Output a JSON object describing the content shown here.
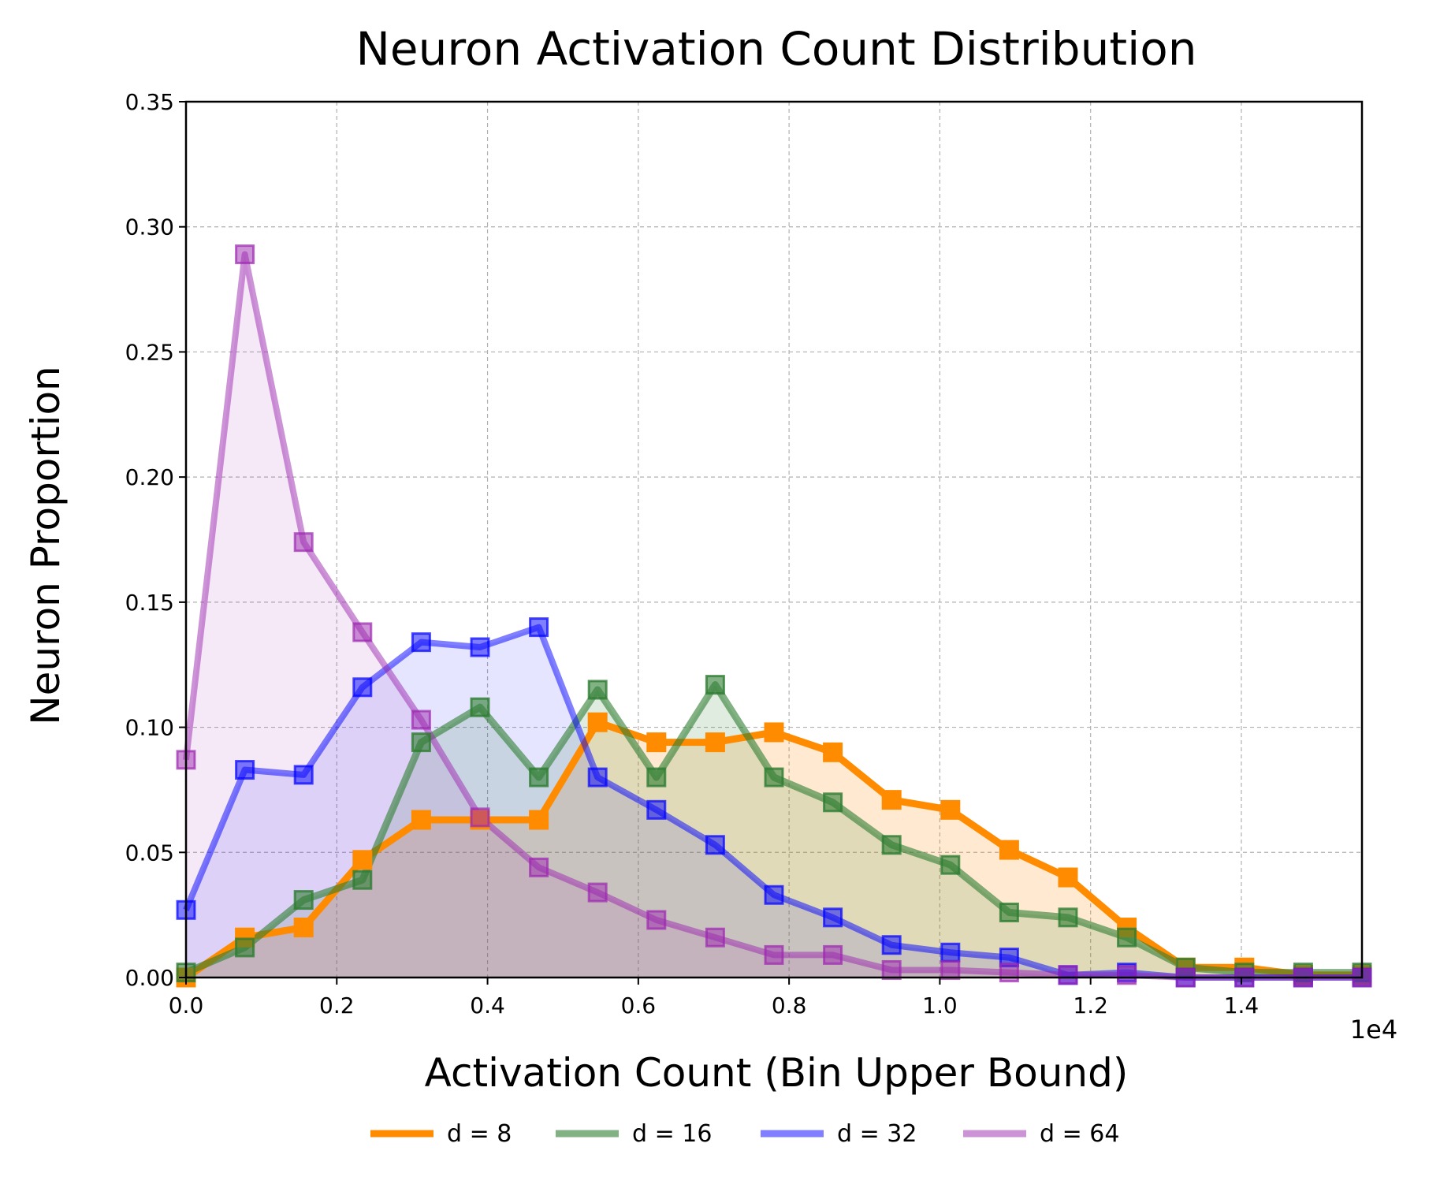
{
  "chart_data": {
    "type": "line",
    "title": "Neuron Activation Count Distribution",
    "xlabel": "Activation Count (Bin Upper Bound)",
    "ylabel": "Neuron Proportion",
    "x_scale_label": "1e4",
    "xlim": [
      0,
      15600
    ],
    "ylim": [
      0,
      0.35
    ],
    "x_ticks": [
      0,
      2000,
      4000,
      6000,
      8000,
      10000,
      12000,
      14000
    ],
    "x_tick_labels": [
      "0.0",
      "0.2",
      "0.4",
      "0.6",
      "0.8",
      "1.0",
      "1.2",
      "1.4"
    ],
    "y_ticks": [
      0,
      0.05,
      0.1,
      0.15,
      0.2,
      0.25,
      0.3,
      0.35
    ],
    "y_tick_labels": [
      "0.00",
      "0.05",
      "0.10",
      "0.15",
      "0.20",
      "0.25",
      "0.30",
      "0.35"
    ],
    "grid": true,
    "legend_position": "bottom-center, outside plot",
    "x": [
      0,
      780,
      1560,
      2340,
      3120,
      3900,
      4680,
      5460,
      6240,
      7020,
      7800,
      8580,
      9360,
      10140,
      10920,
      11700,
      12480,
      13260,
      14040,
      14820,
      15600
    ],
    "series": [
      {
        "name": "d = 8",
        "color": "#ff8c00",
        "line_alpha": 1.0,
        "fill_alpha": 0.18,
        "values": [
          0.0,
          0.016,
          0.02,
          0.047,
          0.063,
          0.063,
          0.063,
          0.102,
          0.094,
          0.094,
          0.098,
          0.09,
          0.071,
          0.067,
          0.051,
          0.04,
          0.02,
          0.004,
          0.004,
          0.001,
          0.001
        ]
      },
      {
        "name": "d = 16",
        "color": "#2e7d32",
        "line_alpha": 0.6,
        "fill_alpha": 0.15,
        "values": [
          0.002,
          0.012,
          0.031,
          0.039,
          0.094,
          0.108,
          0.08,
          0.115,
          0.08,
          0.117,
          0.08,
          0.07,
          0.053,
          0.045,
          0.026,
          0.024,
          0.016,
          0.004,
          0.002,
          0.002,
          0.002
        ]
      },
      {
        "name": "d = 32",
        "color": "#0000ff",
        "line_alpha": 0.5,
        "fill_alpha": 0.1,
        "values": [
          0.027,
          0.083,
          0.081,
          0.116,
          0.134,
          0.132,
          0.14,
          0.08,
          0.067,
          0.053,
          0.033,
          0.024,
          0.013,
          0.01,
          0.008,
          0.001,
          0.002,
          0.0,
          0.0,
          0.0,
          0.0
        ]
      },
      {
        "name": "d = 64",
        "color": "#9c27b0",
        "line_alpha": 0.5,
        "fill_alpha": 0.1,
        "values": [
          0.087,
          0.289,
          0.174,
          0.138,
          0.103,
          0.064,
          0.044,
          0.034,
          0.023,
          0.016,
          0.009,
          0.009,
          0.003,
          0.003,
          0.002,
          0.001,
          0.001,
          0.0,
          0.0,
          0.0,
          0.0
        ]
      }
    ]
  }
}
